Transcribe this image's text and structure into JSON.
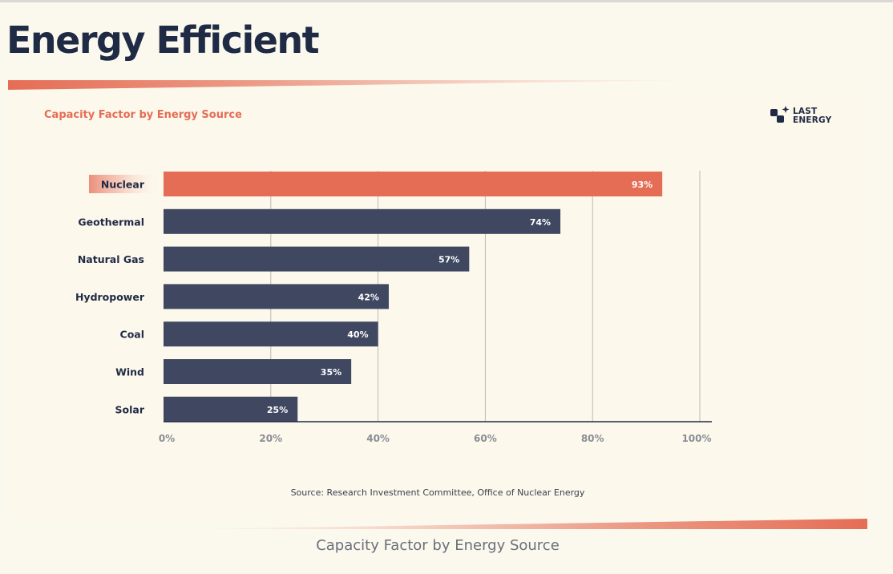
{
  "page": {
    "title": "Energy Efficient",
    "caption": "Capacity Factor by Energy Source"
  },
  "logo": {
    "line1": "LAST",
    "line2": "ENERGY"
  },
  "colors": {
    "accent": "#e56d55",
    "bar": "#404761",
    "text_dark": "#1f2a44",
    "axis_label": "#8a8d96",
    "grid": "#bdbab2",
    "background": "#fbf8ee"
  },
  "chart_data": {
    "type": "bar",
    "orientation": "horizontal",
    "title": "Capacity Factor by Energy Source",
    "categories": [
      "Nuclear",
      "Geothermal",
      "Natural Gas",
      "Hydropower",
      "Coal",
      "Wind",
      "Solar"
    ],
    "values": [
      93,
      74,
      57,
      42,
      40,
      35,
      25
    ],
    "value_labels": [
      "93%",
      "74%",
      "57%",
      "42%",
      "40%",
      "35%",
      "25%"
    ],
    "highlight": "Nuclear",
    "xlim": [
      0,
      100
    ],
    "xticks": [
      0,
      20,
      40,
      60,
      80,
      100
    ],
    "xtick_labels": [
      "0%",
      "20%",
      "40%",
      "60%",
      "80%",
      "100%"
    ],
    "grid": true,
    "source": "Source: Research Investment Committee, Office of Nuclear Energy"
  }
}
